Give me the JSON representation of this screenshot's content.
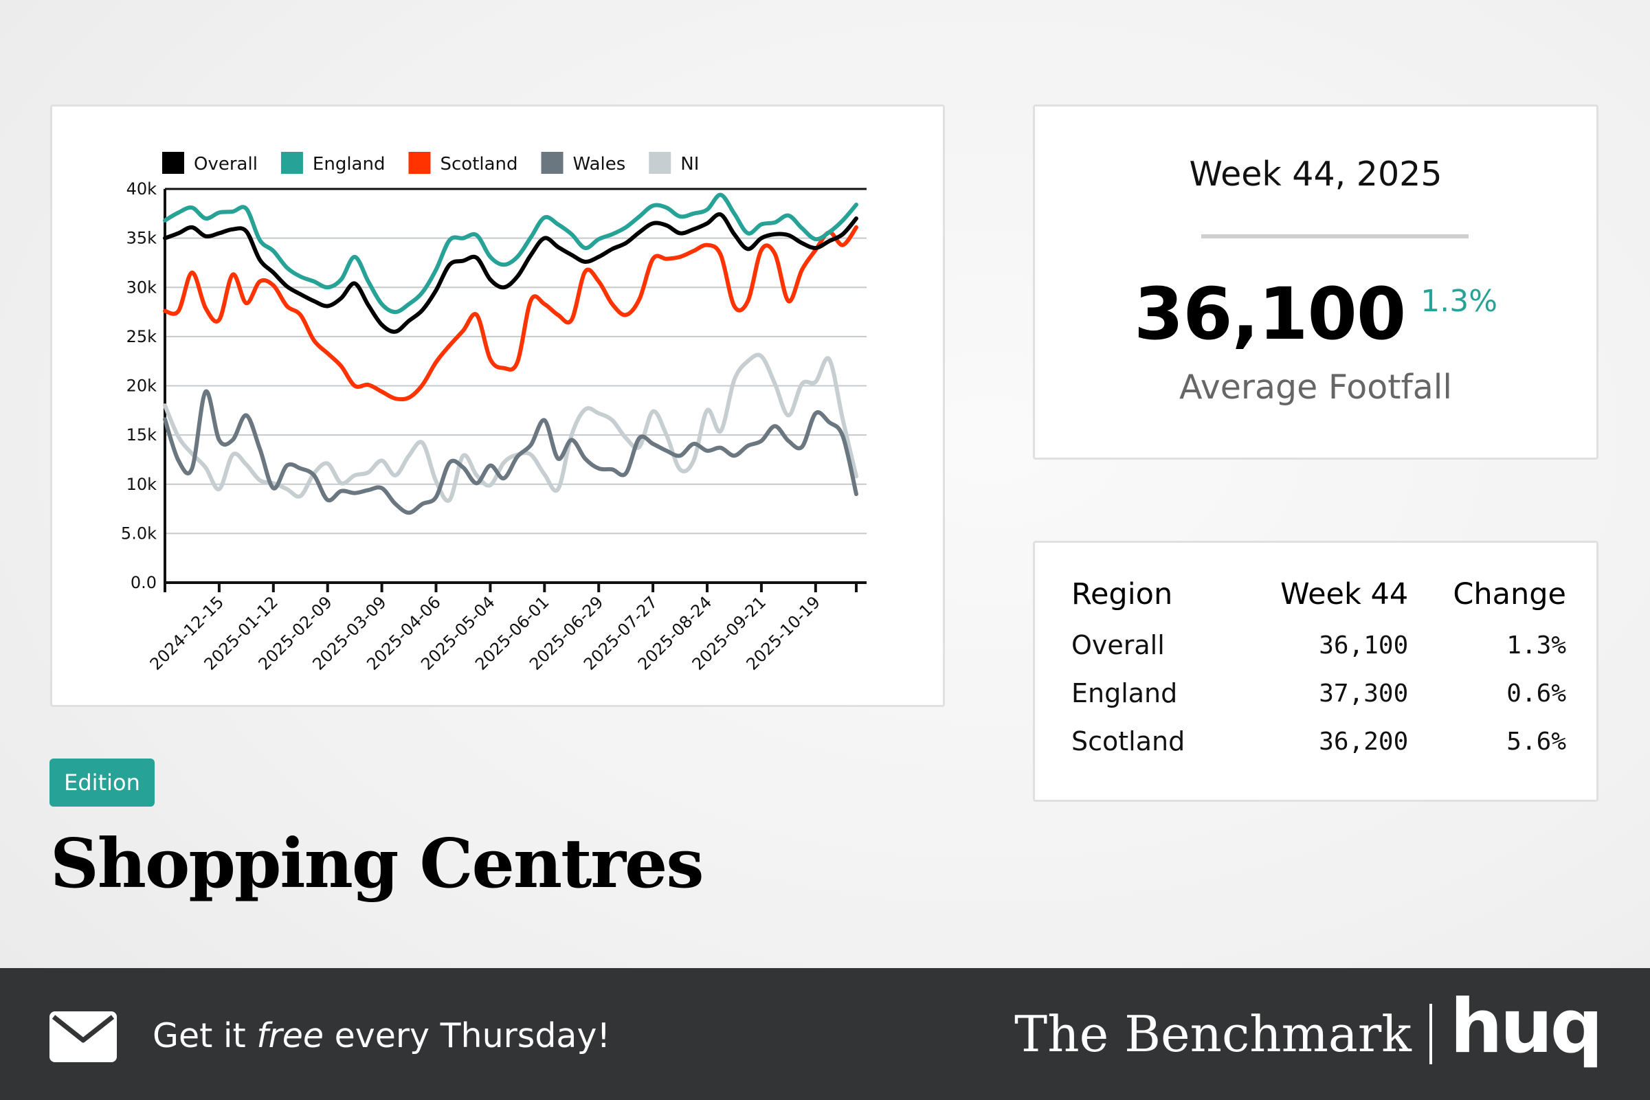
{
  "colors": {
    "overall": "#000000",
    "england": "#26a296",
    "scotland": "#ff3300",
    "wales": "#6b7780",
    "ni": "#c6ced2",
    "accent": "#26a296",
    "footer": "#333436"
  },
  "chart_data": {
    "type": "line",
    "legend_position": "top",
    "grid": "horizontal",
    "ylim": [
      0,
      40
    ],
    "yticks": [
      0,
      5,
      10,
      15,
      20,
      25,
      30,
      35,
      40
    ],
    "ytick_labels": [
      "0.0",
      "5.0k",
      "10k",
      "15k",
      "20k",
      "25k",
      "30k",
      "35k",
      "40k"
    ],
    "xtick_labels": [
      "2024-12-15",
      "2025-01-12",
      "2025-02-09",
      "2025-03-09",
      "2025-04-06",
      "2025-05-04",
      "2025-06-01",
      "2025-06-29",
      "2025-07-27",
      "2025-08-24",
      "2025-09-21",
      "2025-10-19"
    ],
    "x": [
      "2024-11-17",
      "2024-11-24",
      "2024-12-01",
      "2024-12-08",
      "2024-12-15",
      "2024-12-22",
      "2024-12-29",
      "2025-01-05",
      "2025-01-12",
      "2025-01-19",
      "2025-01-26",
      "2025-02-02",
      "2025-02-09",
      "2025-02-16",
      "2025-02-23",
      "2025-03-02",
      "2025-03-09",
      "2025-03-16",
      "2025-03-23",
      "2025-03-30",
      "2025-04-06",
      "2025-04-13",
      "2025-04-20",
      "2025-04-27",
      "2025-05-04",
      "2025-05-11",
      "2025-05-18",
      "2025-05-25",
      "2025-06-01",
      "2025-06-08",
      "2025-06-15",
      "2025-06-22",
      "2025-06-29",
      "2025-07-06",
      "2025-07-13",
      "2025-07-20",
      "2025-07-27",
      "2025-08-03",
      "2025-08-10",
      "2025-08-17",
      "2025-08-24",
      "2025-08-31",
      "2025-09-07",
      "2025-09-14",
      "2025-09-21",
      "2025-09-28",
      "2025-10-05",
      "2025-10-12",
      "2025-10-19",
      "2025-10-26",
      "2025-11-02",
      "2025-11-09"
    ],
    "series": [
      {
        "name": "Overall",
        "key": "overall",
        "values": [
          35.0,
          35.5,
          36.1,
          35.2,
          35.5,
          35.9,
          35.7,
          32.8,
          31.5,
          30.1,
          29.3,
          28.6,
          28.1,
          28.9,
          30.4,
          28.2,
          26.2,
          25.5,
          26.6,
          27.7,
          29.7,
          32.3,
          32.7,
          33.0,
          30.8,
          30.0,
          31.1,
          33.3,
          35.0,
          34.1,
          33.3,
          32.6,
          33.1,
          33.9,
          34.5,
          35.6,
          36.5,
          36.3,
          35.5,
          35.9,
          36.5,
          37.4,
          35.4,
          33.9,
          35.0,
          35.4,
          35.3,
          34.5,
          34.0,
          34.7,
          35.4,
          37.0
        ]
      },
      {
        "name": "England",
        "key": "england",
        "values": [
          36.8,
          37.6,
          38.1,
          37.0,
          37.6,
          37.7,
          38.0,
          34.8,
          33.7,
          32.0,
          31.1,
          30.6,
          30.0,
          30.8,
          33.1,
          30.6,
          28.3,
          27.5,
          28.3,
          29.5,
          31.8,
          34.8,
          35.0,
          35.3,
          33.1,
          32.3,
          33.1,
          35.1,
          37.1,
          36.4,
          35.4,
          34.0,
          34.9,
          35.4,
          36.1,
          37.2,
          38.3,
          38.1,
          37.2,
          37.5,
          37.9,
          39.4,
          37.5,
          35.5,
          36.4,
          36.6,
          37.3,
          36.0,
          34.9,
          35.6,
          36.8,
          38.4
        ]
      },
      {
        "name": "Scotland",
        "key": "scotland",
        "values": [
          27.6,
          27.6,
          31.5,
          27.9,
          26.7,
          31.3,
          28.4,
          30.6,
          30.2,
          28.1,
          27.2,
          24.6,
          23.3,
          22.0,
          20.0,
          20.1,
          19.4,
          18.7,
          18.8,
          20.1,
          22.4,
          24.1,
          25.6,
          27.2,
          22.7,
          21.8,
          22.4,
          28.7,
          28.3,
          27.2,
          26.7,
          31.6,
          30.6,
          28.3,
          27.2,
          28.8,
          32.9,
          32.9,
          33.1,
          33.7,
          34.3,
          33.3,
          28.1,
          28.6,
          33.8,
          33.4,
          28.6,
          31.8,
          33.8,
          35.6,
          34.3,
          36.1
        ]
      },
      {
        "name": "Wales",
        "key": "wales",
        "values": [
          16.6,
          12.4,
          11.6,
          19.4,
          14.5,
          14.5,
          17.0,
          13.6,
          9.6,
          11.9,
          11.6,
          10.9,
          8.4,
          9.3,
          9.1,
          9.4,
          9.6,
          8.0,
          7.1,
          8.0,
          8.7,
          12.2,
          11.7,
          10.1,
          11.9,
          10.6,
          12.8,
          14.0,
          16.5,
          12.6,
          14.5,
          12.6,
          11.6,
          11.5,
          11.1,
          14.7,
          14.1,
          13.4,
          12.9,
          14.1,
          13.4,
          13.7,
          12.9,
          13.9,
          14.4,
          15.9,
          14.4,
          13.8,
          17.2,
          16.3,
          14.9,
          9.0
        ]
      },
      {
        "name": "NI",
        "key": "ni",
        "values": [
          18.0,
          14.8,
          13.1,
          11.7,
          9.5,
          13.0,
          12.0,
          10.4,
          10.1,
          9.5,
          8.8,
          11.1,
          12.1,
          10.1,
          10.9,
          11.2,
          12.4,
          10.9,
          12.9,
          14.2,
          10.3,
          8.4,
          12.9,
          10.9,
          9.9,
          12.2,
          13.0,
          13.0,
          11.0,
          9.5,
          15.0,
          17.6,
          17.2,
          16.5,
          14.7,
          13.8,
          17.4,
          15.0,
          11.5,
          12.4,
          17.5,
          15.4,
          20.6,
          22.5,
          23.0,
          20.2,
          17.0,
          20.2,
          20.4,
          22.7,
          16.6,
          10.8
        ]
      }
    ]
  },
  "summary": {
    "week_title": "Week 44, 2025",
    "value": "36,100",
    "change": "1.3%",
    "label": "Average Footfall"
  },
  "table": {
    "headers": [
      "Region",
      "Week 44",
      "Change"
    ],
    "rows": [
      [
        "Overall",
        "36,100",
        "1.3%"
      ],
      [
        "England",
        "37,300",
        "0.6%"
      ],
      [
        "Scotland",
        "36,200",
        "5.6%"
      ]
    ]
  },
  "badge": "Edition",
  "headline": "Shopping Centres",
  "footer": {
    "cta_pre": "Get it ",
    "cta_em": "free",
    "cta_post": " every Thursday!",
    "brand": "The Benchmark",
    "logo": "huq",
    "icon": "envelope-icon"
  }
}
